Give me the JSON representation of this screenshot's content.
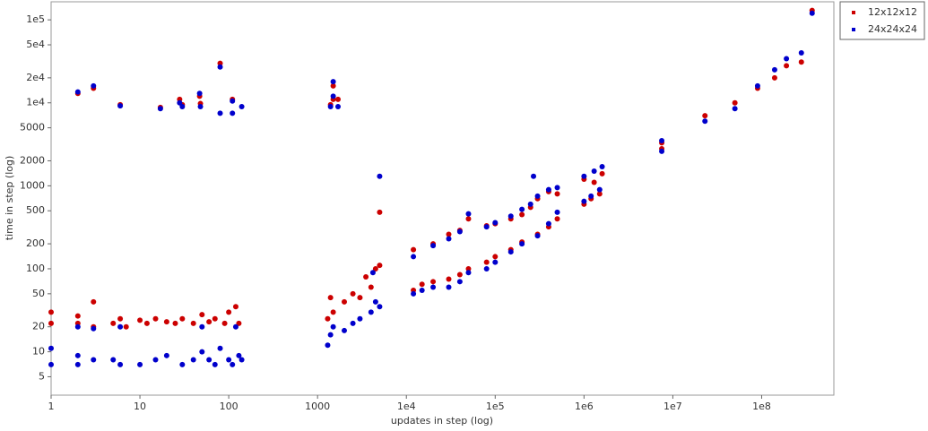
{
  "chart_data": {
    "type": "scatter",
    "x_label": "updates in step (log)",
    "y_label": "time in step (log)",
    "x_log": true,
    "y_log": true,
    "legend": "top-right-outside",
    "xlim": [
      1,
      650000000
    ],
    "ylim": [
      3,
      165000
    ],
    "xticks": [
      1,
      10,
      100,
      1000,
      {
        "value": 10000,
        "label": "1e4"
      },
      {
        "value": 100000,
        "label": "1e5"
      },
      {
        "value": 1000000,
        "label": "1e6"
      },
      {
        "value": 10000000,
        "label": "1e7"
      },
      {
        "value": 100000000,
        "label": "1e8"
      }
    ],
    "yticks": [
      5,
      10,
      20,
      50,
      100,
      200,
      500,
      1000,
      2000,
      5000,
      {
        "value": 10000,
        "label": "1e4"
      },
      {
        "value": 20000,
        "label": "2e4"
      },
      {
        "value": 50000,
        "label": "5e4"
      },
      {
        "value": 100000,
        "label": "1e5"
      }
    ],
    "series": [
      {
        "name": "12x12x12",
        "color": "#cc0000",
        "x": [
          2,
          3,
          6,
          17,
          28,
          30,
          47,
          48,
          80,
          110,
          1400,
          1500,
          1500,
          1700,
          5000,
          370000000,
          280000000,
          190000000,
          140000000,
          90000000,
          50000000,
          23000000,
          7500000,
          7500000,
          1,
          1,
          2,
          2,
          3,
          3,
          5,
          6,
          7,
          10,
          12,
          15,
          20,
          25,
          30,
          40,
          50,
          60,
          70,
          90,
          100,
          120,
          130,
          1300,
          1400,
          1500,
          2000,
          2500,
          3000,
          3500,
          4000,
          4500,
          5000,
          12000,
          15000,
          20000,
          30000,
          40000,
          50000,
          12000,
          20000,
          30000,
          40000,
          50000,
          80000,
          100000,
          150000,
          200000,
          300000,
          400000,
          500000,
          80000,
          100000,
          150000,
          200000,
          250000,
          300000,
          400000,
          500000,
          1000000,
          1200000,
          1500000,
          1000000,
          1300000,
          1600000
        ],
        "values": [
          13000,
          15000,
          9500,
          8800,
          11000,
          9500,
          12000,
          9800,
          30000,
          11000,
          9500,
          16000,
          11000,
          11000,
          480,
          130000,
          31000,
          28000,
          20000,
          15000,
          10000,
          7000,
          3300,
          2800,
          22,
          30,
          22,
          27,
          20,
          40,
          22,
          25,
          20,
          24,
          22,
          25,
          23,
          22,
          25,
          22,
          28,
          23,
          25,
          22,
          30,
          35,
          22,
          25,
          45,
          30,
          40,
          50,
          45,
          80,
          60,
          100,
          110,
          55,
          65,
          70,
          75,
          85,
          100,
          170,
          200,
          260,
          290,
          400,
          120,
          140,
          170,
          210,
          260,
          320,
          400,
          330,
          350,
          400,
          450,
          550,
          700,
          850,
          800,
          600,
          700,
          800,
          1200,
          1100,
          1400
        ]
      },
      {
        "name": "24x24x24",
        "color": "#0000cc",
        "x": [
          2,
          3,
          6,
          17,
          28,
          30,
          47,
          48,
          80,
          80,
          110,
          110,
          140,
          1400,
          1500,
          1500,
          1700,
          5000,
          370000000,
          280000000,
          190000000,
          140000000,
          90000000,
          50000000,
          23000000,
          7500000,
          7500000,
          270000,
          1,
          1,
          2,
          2,
          3,
          3,
          5,
          6,
          10,
          15,
          20,
          30,
          40,
          50,
          60,
          70,
          80,
          100,
          110,
          130,
          140,
          2,
          6,
          50,
          120,
          1300,
          1400,
          1500,
          2000,
          2500,
          3000,
          4000,
          4500,
          5000,
          4200,
          12000,
          15000,
          20000,
          30000,
          40000,
          50000,
          12000,
          20000,
          30000,
          40000,
          50000,
          80000,
          100000,
          150000,
          200000,
          300000,
          400000,
          500000,
          80000,
          100000,
          150000,
          200000,
          250000,
          300000,
          400000,
          500000,
          1000000,
          1200000,
          1500000,
          1000000,
          1300000,
          1600000
        ],
        "values": [
          13500,
          16000,
          9200,
          8500,
          10000,
          9000,
          13000,
          9000,
          27000,
          7500,
          10500,
          7500,
          9000,
          9000,
          18000,
          12000,
          9000,
          1300,
          120000,
          40000,
          34000,
          25000,
          16000,
          8500,
          6000,
          3500,
          2600,
          1300,
          7,
          11,
          7,
          9,
          8,
          19,
          8,
          7,
          7,
          8,
          9,
          7,
          8,
          10,
          8,
          7,
          11,
          8,
          7,
          9,
          8,
          20,
          20,
          20,
          20,
          12,
          16,
          20,
          18,
          22,
          25,
          30,
          40,
          35,
          90,
          50,
          55,
          60,
          60,
          70,
          90,
          140,
          190,
          230,
          280,
          460,
          100,
          120,
          160,
          200,
          250,
          350,
          480,
          320,
          360,
          430,
          520,
          600,
          750,
          900,
          950,
          650,
          750,
          900,
          1300,
          1500,
          1700
        ]
      }
    ]
  }
}
